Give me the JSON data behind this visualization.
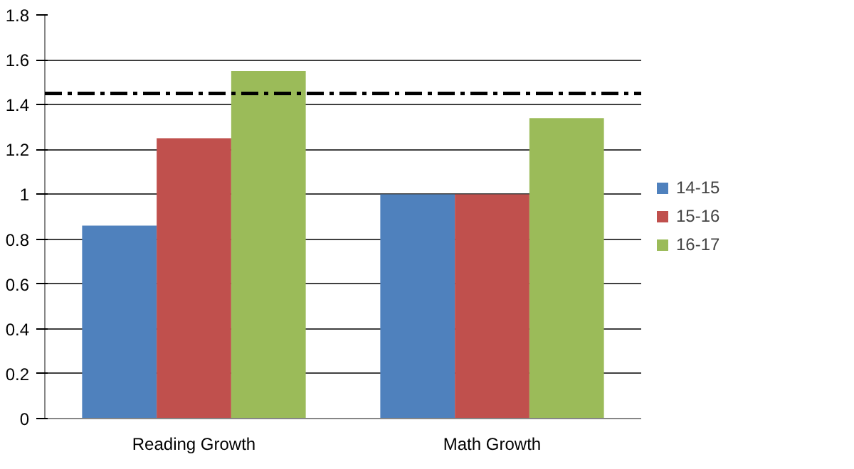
{
  "chart_data": {
    "type": "bar",
    "categories": [
      "Reading Growth",
      "Math Growth"
    ],
    "series": [
      {
        "name": "14-15",
        "color": "#4f81bd",
        "values": [
          0.86,
          1.0
        ]
      },
      {
        "name": "15-16",
        "color": "#c0504d",
        "values": [
          1.25,
          1.0
        ]
      },
      {
        "name": "16-17",
        "color": "#9bbb59",
        "values": [
          1.55,
          1.34
        ]
      }
    ],
    "ylim": [
      0,
      1.8
    ],
    "yticks": [
      0,
      0.2,
      0.4,
      0.6,
      0.8,
      1,
      1.2,
      1.4,
      1.6,
      1.8
    ],
    "grid": "y",
    "legend": "right",
    "ref_lines": [
      {
        "axis": "y",
        "value": 1.45,
        "color": "#000000",
        "line_style": "dashdot"
      }
    ]
  }
}
